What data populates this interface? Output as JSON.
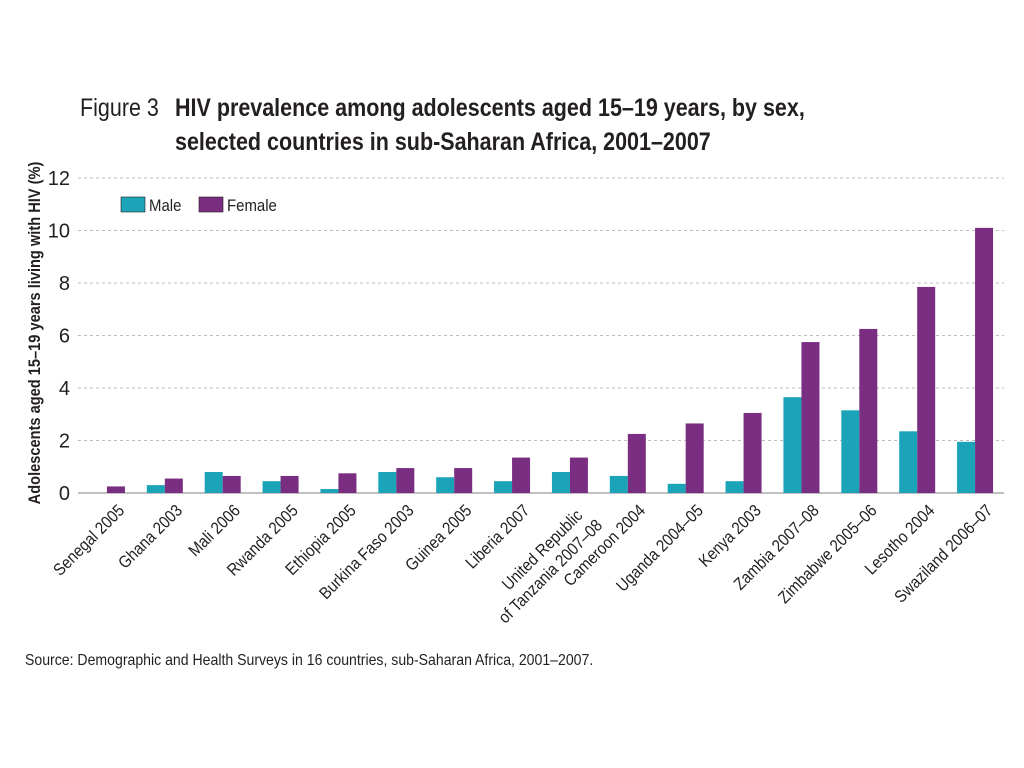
{
  "figure": {
    "label": "Figure 3",
    "title_line1": "HIV prevalence among adolescents aged 15–19 years, by sex,",
    "title_line2": "selected countries in sub-Saharan Africa, 2001–2007",
    "source": "Source: Demographic and Health Surveys in 16 countries, sub-Saharan Africa, 2001–2007."
  },
  "colors": {
    "male": "#1ba3b8",
    "female": "#7a2e82",
    "grid": "#bdbdbd",
    "text": "#231f20"
  },
  "chart_data": {
    "type": "bar",
    "title": "HIV prevalence among adolescents aged 15–19 years, by sex, selected countries in sub-Saharan Africa, 2001–2007",
    "xlabel": "",
    "ylabel": "Adolescents aged 15–19 years living with HIV (%)",
    "ylim": [
      0,
      12
    ],
    "yticks": [
      0,
      2,
      4,
      6,
      8,
      10,
      12
    ],
    "grid": true,
    "legend_position": "top-left",
    "categories": [
      "Senegal 2005",
      "Ghana 2003",
      "Mali 2006",
      "Rwanda 2005",
      "Ethiopia 2005",
      "Burkina Faso 2003",
      "Guinea 2005",
      "Liberia 2007",
      "United Republic of Tanzania 2007–08",
      "Cameroon 2004",
      "Uganda 2004–05",
      "Kenya 2003",
      "Zambia 2007–08",
      "Zimbabwe 2005–06",
      "Lesotho 2004",
      "Swaziland 2006–07"
    ],
    "category_lines": [
      [
        "Senegal 2005"
      ],
      [
        "Ghana 2003"
      ],
      [
        "Mali 2006"
      ],
      [
        "Rwanda 2005"
      ],
      [
        "Ethiopia 2005"
      ],
      [
        "Burkina Faso 2003"
      ],
      [
        "Guinea 2005"
      ],
      [
        "Liberia 2007"
      ],
      [
        "United Republic",
        "of Tanzania 2007–08"
      ],
      [
        "Cameroon 2004"
      ],
      [
        "Uganda 2004–05"
      ],
      [
        "Kenya 2003"
      ],
      [
        "Zambia 2007–08"
      ],
      [
        "Zimbabwe 2005–06"
      ],
      [
        "Lesotho 2004"
      ],
      [
        "Swaziland 2006–07"
      ]
    ],
    "series": [
      {
        "name": "Male",
        "values": [
          0.0,
          0.3,
          0.8,
          0.45,
          0.15,
          0.8,
          0.6,
          0.45,
          0.8,
          0.65,
          0.35,
          0.45,
          3.65,
          3.15,
          2.35,
          1.95
        ]
      },
      {
        "name": "Female",
        "values": [
          0.25,
          0.55,
          0.65,
          0.65,
          0.75,
          0.95,
          0.95,
          1.35,
          1.35,
          2.25,
          2.65,
          3.05,
          5.75,
          6.25,
          7.85,
          10.1
        ]
      }
    ]
  }
}
